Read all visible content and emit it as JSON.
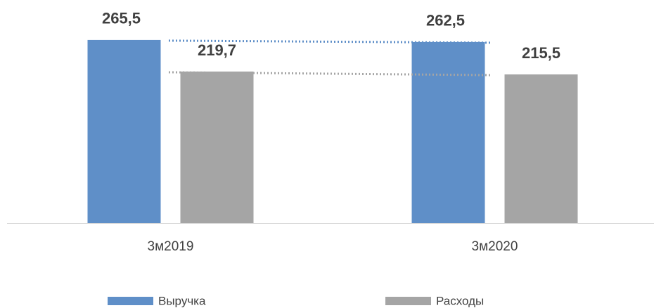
{
  "chart_data": {
    "type": "bar",
    "categories": [
      "3м2019",
      "3м2020"
    ],
    "series": [
      {
        "name": "Выручка",
        "color": "#5f8fc8",
        "values": [
          265.5,
          262.5
        ],
        "value_labels": [
          "265,5",
          "262,5"
        ]
      },
      {
        "name": "Расходы",
        "color": "#a5a5a5",
        "values": [
          219.7,
          215.5
        ],
        "value_labels": [
          "219,7",
          "215,5"
        ]
      }
    ],
    "ylim": [
      0,
      300
    ]
  }
}
